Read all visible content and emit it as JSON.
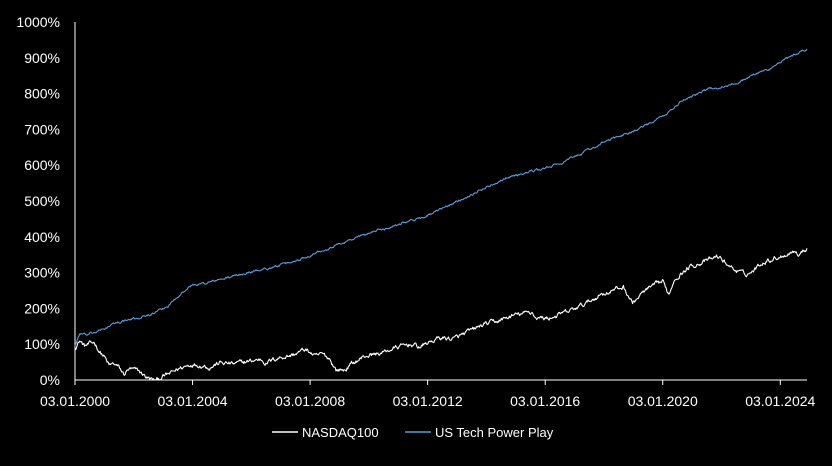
{
  "chart_data": {
    "type": "line",
    "title": "",
    "xlabel": "",
    "ylabel": "",
    "x_tick_labels": [
      "03.01.2000",
      "03.01.2004",
      "03.01.2008",
      "03.01.2012",
      "03.01.2016",
      "03.01.2020",
      "03.01.2024"
    ],
    "y_tick_labels": [
      "0%",
      "100%",
      "200%",
      "300%",
      "400%",
      "500%",
      "600%",
      "700%",
      "800%",
      "900%",
      "1000%"
    ],
    "xlim": [
      "2000-01-03",
      "2024-11-30"
    ],
    "ylim": [
      0,
      1000
    ],
    "grid": false,
    "legend_position": "bottom",
    "colors": {
      "background": "#000000",
      "axis": "#ffffff",
      "text": "#ffffff"
    },
    "series": [
      {
        "name": "NASDAQ100",
        "color": "#ffffff",
        "points": [
          [
            "2000-01-03",
            90
          ],
          [
            "2000-03-01",
            110
          ],
          [
            "2000-05-01",
            95
          ],
          [
            "2000-07-01",
            100
          ],
          [
            "2000-09-01",
            105
          ],
          [
            "2000-11-01",
            80
          ],
          [
            "2001-01-01",
            65
          ],
          [
            "2001-03-01",
            40
          ],
          [
            "2001-05-01",
            45
          ],
          [
            "2001-07-01",
            35
          ],
          [
            "2001-09-01",
            15
          ],
          [
            "2001-11-01",
            30
          ],
          [
            "2002-01-01",
            28
          ],
          [
            "2002-03-01",
            25
          ],
          [
            "2002-05-01",
            15
          ],
          [
            "2002-07-01",
            5
          ],
          [
            "2002-09-01",
            0
          ],
          [
            "2002-10-09",
            -2
          ],
          [
            "2003-01-01",
            10
          ],
          [
            "2003-04-01",
            18
          ],
          [
            "2003-07-01",
            30
          ],
          [
            "2003-10-01",
            38
          ],
          [
            "2004-01-01",
            45
          ],
          [
            "2004-06-01",
            40
          ],
          [
            "2004-08-01",
            35
          ],
          [
            "2004-12-01",
            48
          ],
          [
            "2005-06-01",
            45
          ],
          [
            "2005-12-01",
            52
          ],
          [
            "2006-05-01",
            58
          ],
          [
            "2006-07-01",
            48
          ],
          [
            "2006-12-01",
            62
          ],
          [
            "2007-06-01",
            70
          ],
          [
            "2007-10-31",
            85
          ],
          [
            "2008-01-01",
            78
          ],
          [
            "2008-03-01",
            65
          ],
          [
            "2008-06-01",
            72
          ],
          [
            "2008-09-01",
            60
          ],
          [
            "2008-11-20",
            28
          ],
          [
            "2009-03-09",
            28
          ],
          [
            "2009-06-01",
            45
          ],
          [
            "2009-12-01",
            68
          ],
          [
            "2010-06-01",
            75
          ],
          [
            "2010-12-01",
            90
          ],
          [
            "2011-06-01",
            100
          ],
          [
            "2011-10-01",
            92
          ],
          [
            "2011-12-01",
            100
          ],
          [
            "2012-06-01",
            118
          ],
          [
            "2012-12-01",
            115
          ],
          [
            "2013-06-01",
            135
          ],
          [
            "2013-12-01",
            155
          ],
          [
            "2014-06-01",
            165
          ],
          [
            "2014-12-01",
            180
          ],
          [
            "2015-08-01",
            190
          ],
          [
            "2015-09-01",
            175
          ],
          [
            "2016-02-01",
            172
          ],
          [
            "2016-06-01",
            180
          ],
          [
            "2016-12-01",
            195
          ],
          [
            "2017-06-01",
            215
          ],
          [
            "2017-12-01",
            240
          ],
          [
            "2018-09-01",
            260
          ],
          [
            "2018-12-24",
            215
          ],
          [
            "2019-06-01",
            250
          ],
          [
            "2019-12-31",
            275
          ],
          [
            "2020-03-20",
            240
          ],
          [
            "2020-06-01",
            285
          ],
          [
            "2020-12-31",
            320
          ],
          [
            "2021-06-01",
            330
          ],
          [
            "2021-11-19",
            345
          ],
          [
            "2022-06-01",
            310
          ],
          [
            "2022-10-13",
            295
          ],
          [
            "2022-12-31",
            300
          ],
          [
            "2023-06-01",
            330
          ],
          [
            "2023-12-31",
            345
          ],
          [
            "2024-07-10",
            362
          ],
          [
            "2024-08-05",
            348
          ],
          [
            "2024-11-30",
            368
          ]
        ]
      },
      {
        "name": "US Tech Power Play",
        "color": "#5b9bd5",
        "points": [
          [
            "2000-01-03",
            95
          ],
          [
            "2000-03-01",
            130
          ],
          [
            "2000-06-01",
            125
          ],
          [
            "2000-12-01",
            140
          ],
          [
            "2001-06-01",
            160
          ],
          [
            "2002-01-01",
            170
          ],
          [
            "2002-09-01",
            185
          ],
          [
            "2003-03-01",
            205
          ],
          [
            "2003-07-01",
            235
          ],
          [
            "2004-01-01",
            265
          ],
          [
            "2004-06-01",
            270
          ],
          [
            "2004-12-01",
            280
          ],
          [
            "2005-06-01",
            290
          ],
          [
            "2005-12-01",
            300
          ],
          [
            "2006-06-01",
            310
          ],
          [
            "2006-10-01",
            315
          ],
          [
            "2007-06-01",
            330
          ],
          [
            "2007-12-01",
            345
          ],
          [
            "2008-03-01",
            355
          ],
          [
            "2008-09-01",
            370
          ],
          [
            "2009-03-01",
            385
          ],
          [
            "2009-09-01",
            400
          ],
          [
            "2010-03-01",
            415
          ],
          [
            "2010-09-01",
            425
          ],
          [
            "2011-03-01",
            440
          ],
          [
            "2011-09-01",
            450
          ],
          [
            "2012-03-01",
            465
          ],
          [
            "2012-09-01",
            485
          ],
          [
            "2013-03-01",
            505
          ],
          [
            "2013-09-01",
            525
          ],
          [
            "2014-03-01",
            545
          ],
          [
            "2014-09-01",
            565
          ],
          [
            "2015-03-01",
            575
          ],
          [
            "2015-09-01",
            585
          ],
          [
            "2016-03-01",
            595
          ],
          [
            "2016-09-01",
            610
          ],
          [
            "2017-03-01",
            630
          ],
          [
            "2017-09-01",
            650
          ],
          [
            "2018-03-01",
            670
          ],
          [
            "2018-09-01",
            685
          ],
          [
            "2019-03-01",
            700
          ],
          [
            "2019-09-01",
            720
          ],
          [
            "2020-03-01",
            745
          ],
          [
            "2020-09-01",
            780
          ],
          [
            "2021-03-01",
            800
          ],
          [
            "2021-09-01",
            815
          ],
          [
            "2022-03-01",
            820
          ],
          [
            "2022-09-01",
            835
          ],
          [
            "2023-03-01",
            855
          ],
          [
            "2023-09-01",
            870
          ],
          [
            "2024-03-01",
            895
          ],
          [
            "2024-09-01",
            915
          ],
          [
            "2024-11-30",
            925
          ]
        ]
      }
    ]
  }
}
